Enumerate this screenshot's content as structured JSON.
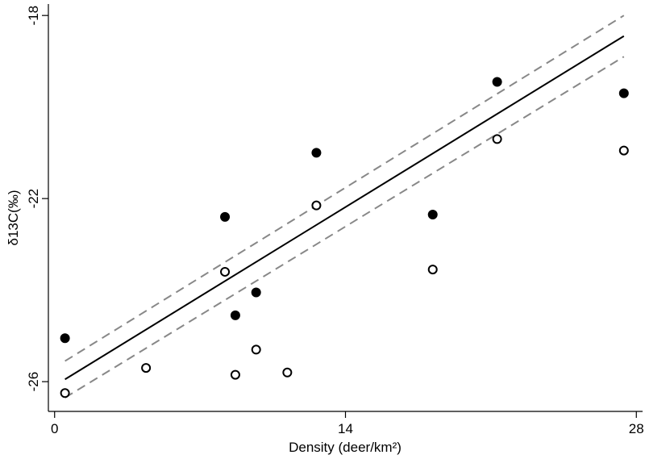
{
  "chart_data": {
    "type": "scatter",
    "title": "",
    "xlabel": "Density (deer/km²)",
    "ylabel": "δ13C(‰)",
    "xlim": [
      -0.3,
      28.3
    ],
    "ylim": [
      -26.65,
      -17.75
    ],
    "xticks": [
      0,
      14,
      28
    ],
    "yticks": [
      -26,
      -22,
      -18
    ],
    "grid": false,
    "legend": "none",
    "series": [
      {
        "marker": "filled-circle",
        "color": "#000000",
        "points": [
          {
            "x": 0.5,
            "y": -25.05
          },
          {
            "x": 8.2,
            "y": -22.4
          },
          {
            "x": 8.7,
            "y": -24.55
          },
          {
            "x": 9.7,
            "y": -24.05
          },
          {
            "x": 12.6,
            "y": -21.0
          },
          {
            "x": 18.2,
            "y": -22.35
          },
          {
            "x": 21.3,
            "y": -19.45
          },
          {
            "x": 27.4,
            "y": -19.7
          }
        ]
      },
      {
        "marker": "open-circle",
        "color": "#000000",
        "points": [
          {
            "x": 0.5,
            "y": -26.25
          },
          {
            "x": 4.4,
            "y": -25.7
          },
          {
            "x": 8.2,
            "y": -23.6
          },
          {
            "x": 8.7,
            "y": -25.85
          },
          {
            "x": 9.7,
            "y": -25.3
          },
          {
            "x": 11.2,
            "y": -25.8
          },
          {
            "x": 12.6,
            "y": -22.15
          },
          {
            "x": 18.2,
            "y": -23.55
          },
          {
            "x": 21.3,
            "y": -20.7
          },
          {
            "x": 27.4,
            "y": -20.95
          }
        ]
      }
    ],
    "fit_line": {
      "style": "solid",
      "color": "#000000",
      "x": [
        0.5,
        27.4
      ],
      "y": [
        -25.95,
        -18.45
      ]
    },
    "ci_lines": [
      {
        "style": "dashed",
        "color": "#888888",
        "x": [
          0.5,
          27.4
        ],
        "y": [
          -25.55,
          -18.0
        ]
      },
      {
        "style": "dashed",
        "color": "#888888",
        "x": [
          0.5,
          27.4
        ],
        "y": [
          -26.35,
          -18.9
        ]
      }
    ]
  }
}
